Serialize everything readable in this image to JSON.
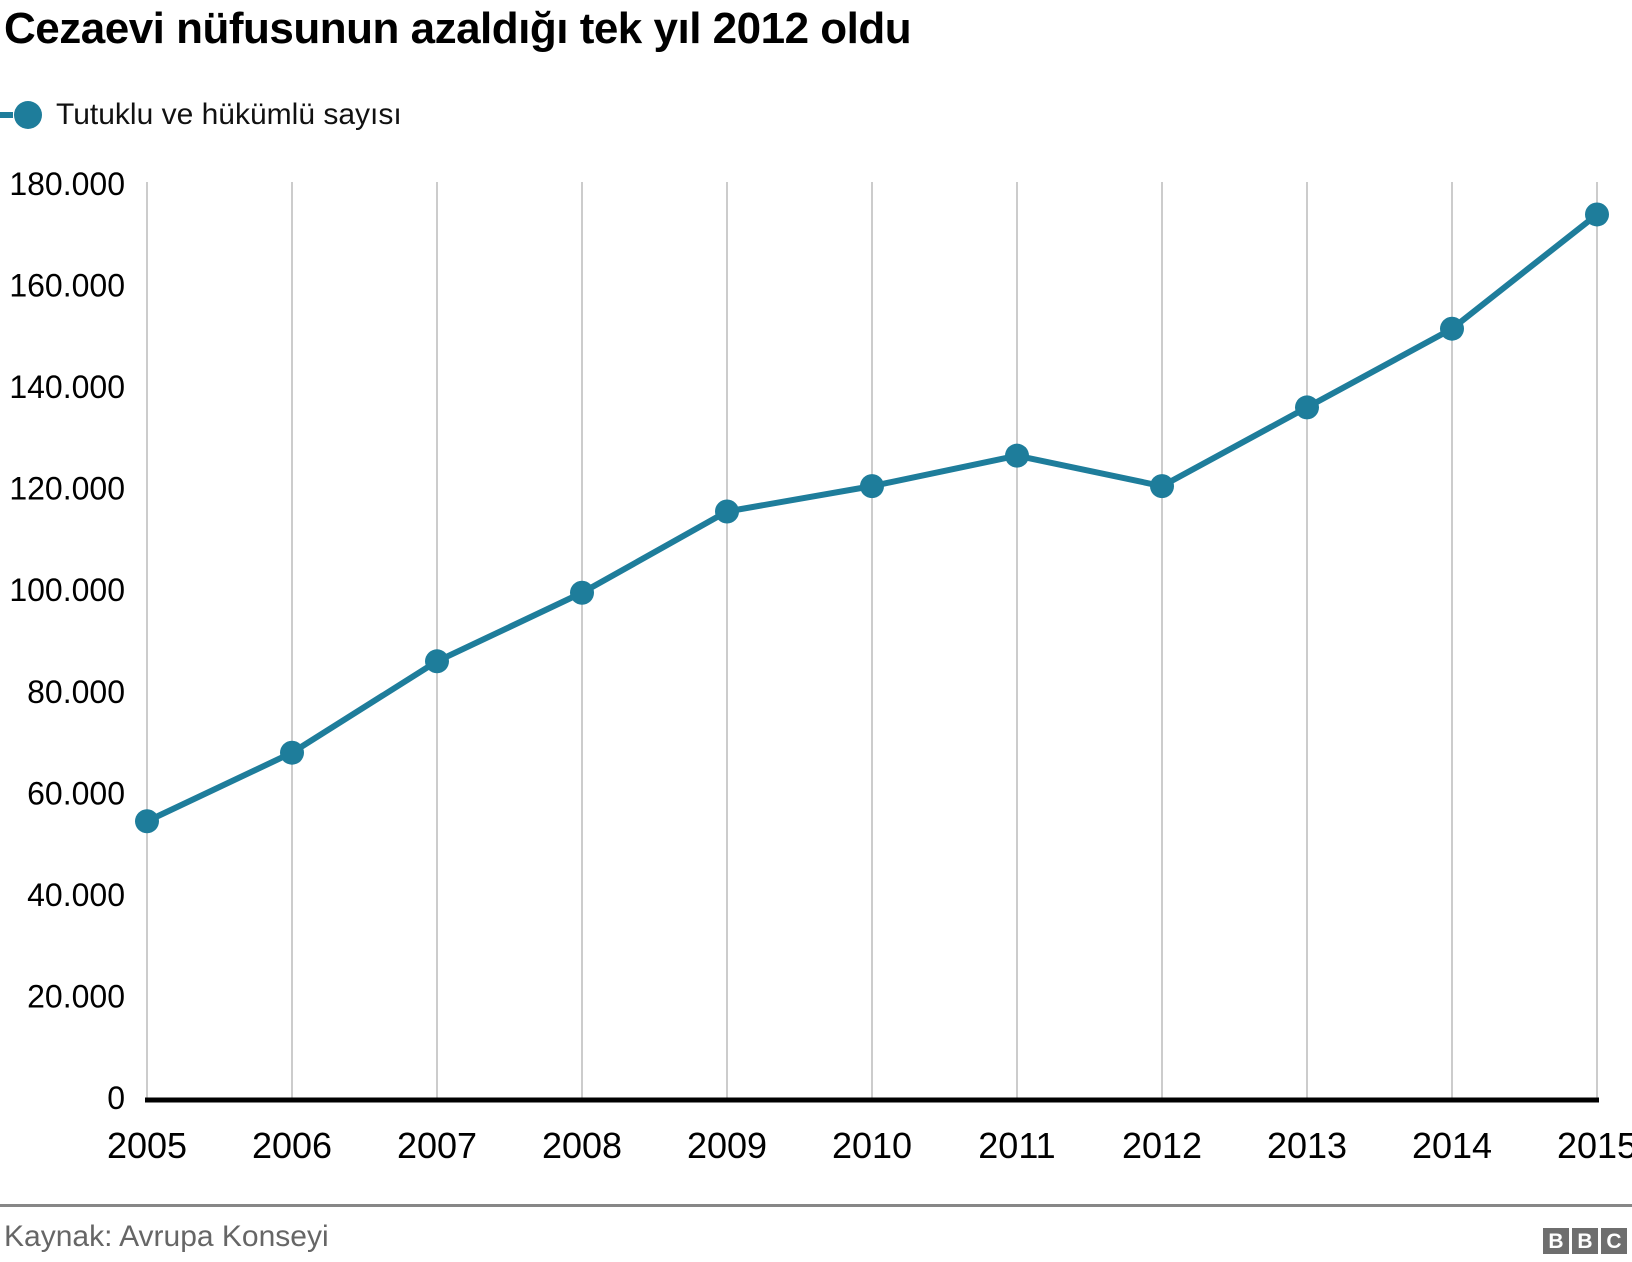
{
  "title": "Cezaevi nüfusunun azaldığı tek yıl 2012 oldu",
  "legend": {
    "label": "Tutuklu ve hükümlü sayısı",
    "marker_color": "#1E7D9B"
  },
  "source": "Kaynak: Avrupa Konseyi",
  "logo": {
    "letters": [
      "B",
      "B",
      "C"
    ]
  },
  "colors": {
    "line": "#1E7D9B",
    "point": "#1E7D9B",
    "gridline": "#CCCCCC",
    "axis_baseline": "#000000",
    "tick_text": "#000000",
    "divider": "#878787",
    "source_text": "#666666",
    "logo_bg": "#6E6E6E"
  },
  "chart_data": {
    "type": "line",
    "title": "Cezaevi nüfusunun azaldığı tek yıl 2012 oldu",
    "x": [
      2005,
      2006,
      2007,
      2008,
      2009,
      2010,
      2011,
      2012,
      2013,
      2014,
      2015
    ],
    "xtick_labels": [
      "2005",
      "2006",
      "2007",
      "2008",
      "2009",
      "2010",
      "2011",
      "2012",
      "2013",
      "2014",
      "2015"
    ],
    "series": [
      {
        "name": "Tutuklu ve hükümlü sayısı",
        "values": [
          54500,
          68000,
          86000,
          99500,
          115500,
          120500,
          126500,
          120500,
          136000,
          151500,
          174000
        ]
      }
    ],
    "ylim": [
      0,
      180000
    ],
    "yticks": [
      {
        "value": 0,
        "label": "0"
      },
      {
        "value": 20000,
        "label": "20.000"
      },
      {
        "value": 40000,
        "label": "40.000"
      },
      {
        "value": 60000,
        "label": "60.000"
      },
      {
        "value": 80000,
        "label": "80.000"
      },
      {
        "value": 100000,
        "label": "100.000"
      },
      {
        "value": 120000,
        "label": "120.000"
      },
      {
        "value": 140000,
        "label": "140.000"
      },
      {
        "value": 160000,
        "label": "160.000"
      },
      {
        "value": 180000,
        "label": "180.000"
      }
    ],
    "grid": "vertical-only",
    "legend_position": "top-left"
  }
}
